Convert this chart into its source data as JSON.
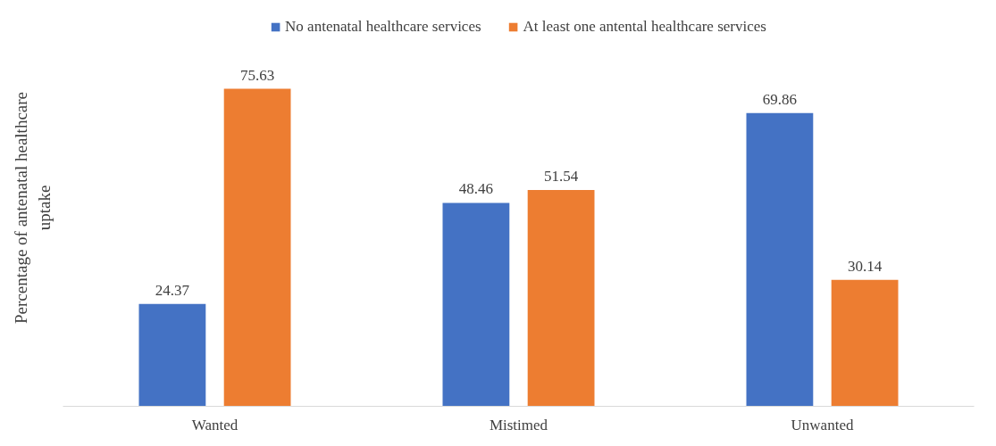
{
  "chart_data": {
    "type": "bar",
    "ylabel": "Percentage of antenatal healthcare uptake",
    "categories": [
      "Wanted",
      "Mistimed",
      "Unwanted"
    ],
    "series": [
      {
        "name": "No antenatal healthcare services",
        "color": "#4472c4",
        "values": [
          24.37,
          48.46,
          69.86
        ]
      },
      {
        "name": "At least one antental healthcare services",
        "color": "#ed7d31",
        "values": [
          75.63,
          51.54,
          30.14
        ]
      }
    ],
    "data_labels": true,
    "grid": false,
    "legend": "top"
  }
}
